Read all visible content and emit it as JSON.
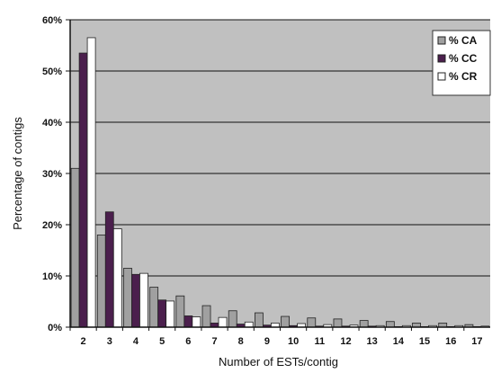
{
  "chart_data": {
    "type": "bar",
    "title": "",
    "xlabel": "Number of ESTs/contig",
    "ylabel": "Percentage of contigs",
    "categories": [
      "2",
      "3",
      "4",
      "5",
      "6",
      "7",
      "8",
      "9",
      "10",
      "11",
      "12",
      "13",
      "14",
      "15",
      "16",
      "17"
    ],
    "ylim": [
      0,
      60
    ],
    "yticks": [
      "0%",
      "10%",
      "20%",
      "30%",
      "40%",
      "50%",
      "60%"
    ],
    "grid": true,
    "legend_position": "top-right",
    "series": [
      {
        "name": "% CA",
        "color": "#a0a0a0",
        "values": [
          31,
          18,
          11.5,
          7.8,
          6.1,
          4.2,
          3.2,
          2.8,
          2.1,
          1.8,
          1.6,
          1.3,
          1.1,
          0.8,
          0.8,
          0.5
        ]
      },
      {
        "name": "% CC",
        "color": "#4b1f4d",
        "values": [
          53.5,
          22.5,
          10.3,
          5.3,
          2.2,
          0.8,
          0.6,
          0.4,
          0.3,
          0.2,
          0.2,
          0.2,
          0.1,
          0.1,
          0.1,
          0.1
        ]
      },
      {
        "name": "% CR",
        "color": "#ffffff",
        "values": [
          56.5,
          19.2,
          10.5,
          5.1,
          2.0,
          1.9,
          1.0,
          0.8,
          0.7,
          0.5,
          0.4,
          0.3,
          0.3,
          0.3,
          0.3,
          0.2
        ]
      }
    ]
  },
  "colors": {
    "plot_background": "#c0c0c0",
    "gridline": "#111111",
    "bar_outline": "#222222"
  }
}
